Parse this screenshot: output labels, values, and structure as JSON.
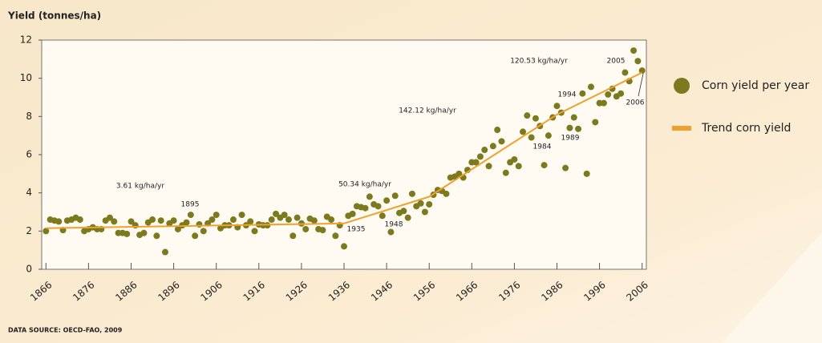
{
  "chart_data": {
    "type": "scatter",
    "y_axis_label": "Yield (tonnes/ha)",
    "source": "DATA SOURCE: OECD-FAO, 2009",
    "xlim": [
      1865,
      2007
    ],
    "ylim": [
      0,
      12
    ],
    "xticks": [
      1866,
      1876,
      1886,
      1896,
      1906,
      1916,
      1926,
      1936,
      1946,
      1956,
      1966,
      1976,
      1986,
      1996,
      2006
    ],
    "yticks": [
      0,
      2,
      4,
      6,
      8,
      10,
      12
    ],
    "grid": false,
    "series": [
      {
        "name": "Corn yield per year",
        "color": "#7b7a1e",
        "kind": "points",
        "x": [
          1866,
          1867,
          1868,
          1869,
          1870,
          1871,
          1872,
          1873,
          1874,
          1875,
          1876,
          1877,
          1878,
          1879,
          1880,
          1881,
          1882,
          1883,
          1884,
          1885,
          1886,
          1887,
          1888,
          1889,
          1890,
          1891,
          1892,
          1893,
          1894,
          1895,
          1896,
          1897,
          1898,
          1899,
          1900,
          1901,
          1902,
          1903,
          1904,
          1905,
          1906,
          1907,
          1908,
          1909,
          1910,
          1911,
          1912,
          1913,
          1914,
          1915,
          1916,
          1917,
          1918,
          1919,
          1920,
          1921,
          1922,
          1923,
          1924,
          1925,
          1926,
          1927,
          1928,
          1929,
          1930,
          1931,
          1932,
          1933,
          1934,
          1935,
          1936,
          1937,
          1938,
          1939,
          1940,
          1941,
          1942,
          1943,
          1944,
          1945,
          1946,
          1947,
          1948,
          1949,
          1950,
          1951,
          1952,
          1953,
          1954,
          1955,
          1956,
          1957,
          1958,
          1959,
          1960,
          1961,
          1962,
          1963,
          1964,
          1965,
          1966,
          1967,
          1968,
          1969,
          1970,
          1971,
          1972,
          1973,
          1974,
          1975,
          1976,
          1977,
          1978,
          1979,
          1980,
          1981,
          1982,
          1983,
          1984,
          1985,
          1986,
          1987,
          1988,
          1989,
          1990,
          1991,
          1992,
          1993,
          1994,
          1995,
          1996,
          1997,
          1998,
          1999,
          2000,
          2001,
          2002,
          2003,
          2004,
          2005,
          2006
        ],
        "values": [
          2.0,
          2.6,
          2.55,
          2.5,
          2.05,
          2.55,
          2.6,
          2.7,
          2.6,
          2.0,
          2.1,
          2.2,
          2.1,
          2.1,
          2.55,
          2.7,
          2.5,
          1.9,
          1.9,
          1.85,
          2.5,
          2.3,
          1.8,
          1.9,
          2.45,
          2.6,
          1.75,
          2.55,
          0.9,
          2.4,
          2.55,
          2.1,
          2.3,
          2.45,
          2.85,
          1.75,
          2.35,
          2.0,
          2.4,
          2.6,
          2.85,
          2.15,
          2.3,
          2.3,
          2.6,
          2.2,
          2.85,
          2.3,
          2.5,
          2.0,
          2.35,
          2.3,
          2.3,
          2.6,
          2.9,
          2.7,
          2.85,
          2.6,
          1.75,
          2.7,
          2.4,
          2.1,
          2.65,
          2.55,
          2.1,
          2.05,
          2.75,
          2.6,
          1.75,
          2.3,
          1.2,
          2.8,
          2.9,
          3.3,
          3.25,
          3.2,
          3.8,
          3.4,
          3.3,
          2.8,
          3.6,
          1.95,
          3.85,
          2.95,
          3.05,
          2.7,
          3.95,
          3.3,
          3.45,
          3.0,
          3.4,
          3.9,
          4.15,
          4.1,
          3.95,
          4.8,
          4.85,
          5.0,
          4.8,
          5.2,
          5.6,
          5.6,
          5.9,
          6.25,
          5.4,
          6.45,
          7.3,
          6.7,
          5.05,
          5.6,
          5.75,
          5.4,
          7.2,
          8.05,
          6.9,
          7.9,
          7.5,
          5.45,
          7.0,
          7.95,
          8.55,
          8.2,
          5.3,
          7.4,
          7.95,
          7.35,
          9.2,
          5.0,
          9.55,
          7.7,
          8.7,
          8.7,
          9.15,
          9.45,
          9.05,
          9.2,
          10.3,
          9.85,
          11.45,
          10.9,
          10.4
        ]
      },
      {
        "name": "Trend corn yield",
        "color": "#f0a02c",
        "kind": "line",
        "x": [
          1866,
          1936,
          1956,
          1986,
          2006
        ],
        "values": [
          2.15,
          2.4,
          3.8,
          8.1,
          10.3
        ]
      }
    ],
    "annotations": [
      "3.61 kg/ha/yr",
      "1895",
      "50.34 kg/ha/yr",
      "1935",
      "1948",
      "142.12 kg/ha/yr",
      "1984",
      "1989",
      "1994",
      "120.53 kg/ha/yr",
      "2005",
      "2006"
    ]
  }
}
